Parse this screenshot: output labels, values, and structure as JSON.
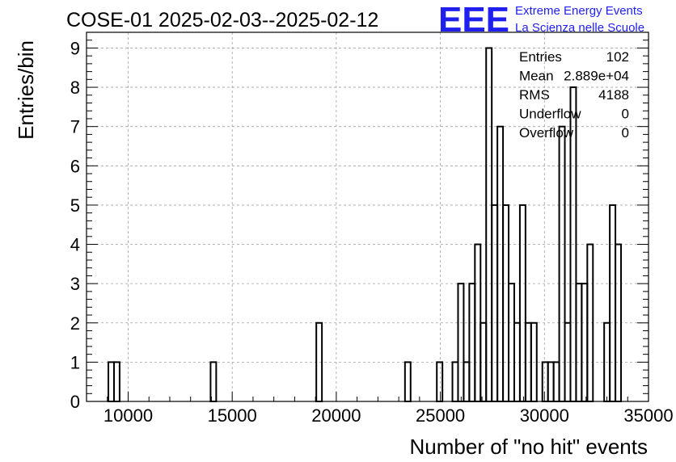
{
  "chart_data": {
    "type": "bar",
    "title": "COSE-01 2025-02-03--2025-02-12",
    "xlabel": "Number of \"no hit\" events",
    "ylabel": "Entries/bin",
    "xlim": [
      8000,
      35000
    ],
    "ylim": [
      0,
      9.4
    ],
    "grid": true,
    "bin_width": 270,
    "x_ticks": [
      10000,
      15000,
      20000,
      25000,
      30000,
      35000
    ],
    "x_tick_labels": [
      "10000",
      "15000",
      "20000",
      "25000",
      "30000",
      "35000"
    ],
    "y_ticks": [
      0,
      1,
      2,
      3,
      4,
      5,
      6,
      7,
      8,
      9
    ],
    "y_tick_labels": [
      "0",
      "1",
      "2",
      "3",
      "4",
      "5",
      "6",
      "7",
      "8",
      "9"
    ],
    "bins": [
      {
        "x": 9050,
        "value": 1
      },
      {
        "x": 9320,
        "value": 1
      },
      {
        "x": 13960,
        "value": 1
      },
      {
        "x": 19040,
        "value": 2
      },
      {
        "x": 23300,
        "value": 1
      },
      {
        "x": 24830,
        "value": 1
      },
      {
        "x": 25580,
        "value": 1
      },
      {
        "x": 25850,
        "value": 3
      },
      {
        "x": 26120,
        "value": 1
      },
      {
        "x": 26390,
        "value": 3
      },
      {
        "x": 26660,
        "value": 4
      },
      {
        "x": 26930,
        "value": 2
      },
      {
        "x": 27200,
        "value": 9
      },
      {
        "x": 27470,
        "value": 5
      },
      {
        "x": 27740,
        "value": 7
      },
      {
        "x": 28010,
        "value": 5
      },
      {
        "x": 28280,
        "value": 3
      },
      {
        "x": 28550,
        "value": 2
      },
      {
        "x": 28820,
        "value": 5
      },
      {
        "x": 29090,
        "value": 2
      },
      {
        "x": 29360,
        "value": 2
      },
      {
        "x": 29630,
        "value": 0
      },
      {
        "x": 29900,
        "value": 1
      },
      {
        "x": 30170,
        "value": 1
      },
      {
        "x": 30440,
        "value": 1
      },
      {
        "x": 30710,
        "value": 7
      },
      {
        "x": 30980,
        "value": 2
      },
      {
        "x": 31250,
        "value": 8
      },
      {
        "x": 31520,
        "value": 3
      },
      {
        "x": 31790,
        "value": 3
      },
      {
        "x": 32060,
        "value": 4
      },
      {
        "x": 32330,
        "value": 0
      },
      {
        "x": 32600,
        "value": 0
      },
      {
        "x": 32870,
        "value": 2
      },
      {
        "x": 33140,
        "value": 5
      },
      {
        "x": 33410,
        "value": 4
      }
    ],
    "stats": [
      {
        "label": "Entries",
        "value": "102"
      },
      {
        "label": "Mean",
        "value": "2.889e+04"
      },
      {
        "label": "RMS",
        "value": "4188"
      },
      {
        "label": "Underflow",
        "value": "0"
      },
      {
        "label": "Overflow",
        "value": "0"
      }
    ]
  },
  "logo": {
    "mark": "EEE",
    "line1": "Extreme Energy Events",
    "line2": "La Scienza nelle Scuole",
    "color": "#1f1ff0"
  },
  "colors": {
    "line": "#000000",
    "grid": "#a0a0a0"
  }
}
